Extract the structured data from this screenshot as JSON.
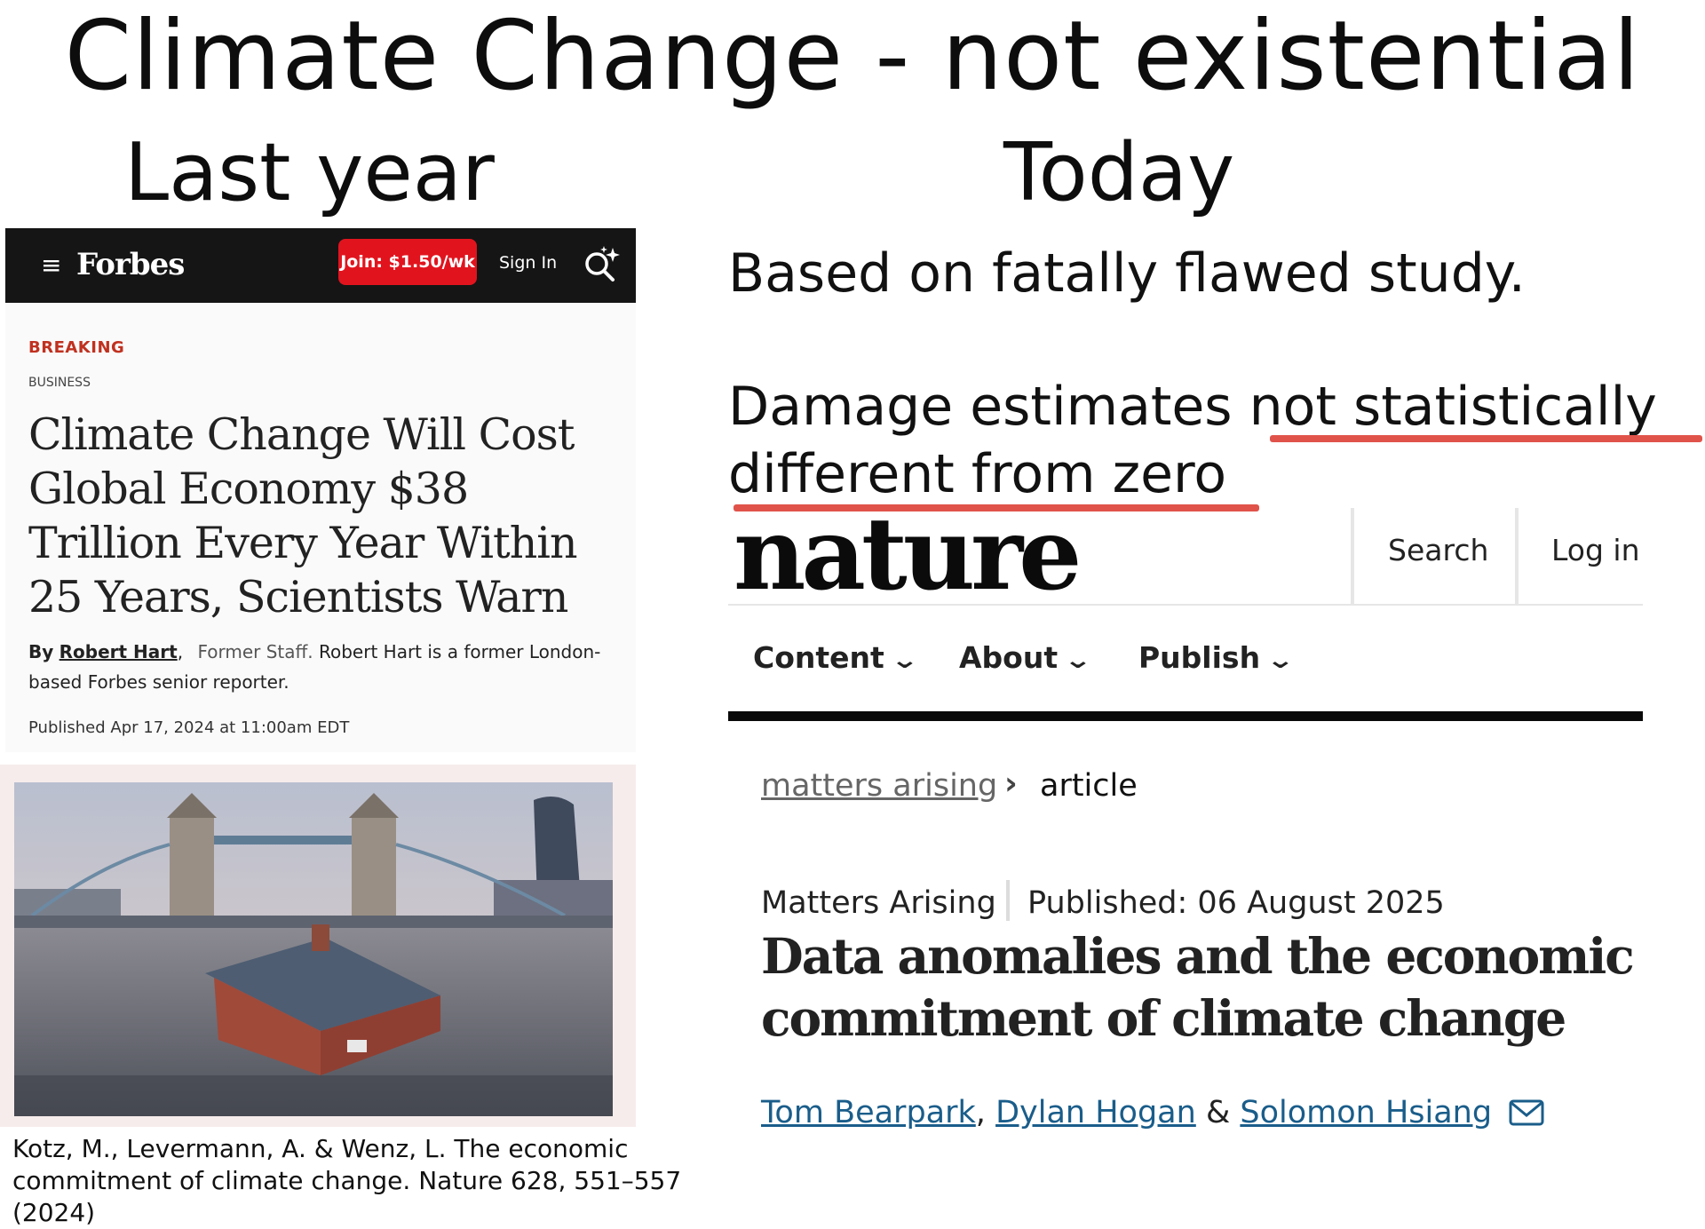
{
  "header": {
    "title": "Climate Change - not existential",
    "left_label": "Last year",
    "right_label": "Today"
  },
  "forbes": {
    "logo": "Forbes",
    "join_button": "Join: $1.50/wk",
    "sign_in": "Sign In",
    "breaking": "BREAKING",
    "section": "BUSINESS",
    "headline": "Climate Change Will Cost Global Economy $38 Trillion Every Year Within 25 Years, Scientists Warn",
    "byline_by": "By",
    "author": "Robert Hart",
    "author_role": "Former Staff.",
    "author_bio": "Robert Hart is a former London-based Forbes senior reporter.",
    "published": "Published Apr 17, 2024 at 11:00am EDT",
    "icons": {
      "menu": "menu-icon",
      "search": "search-icon"
    },
    "colors": {
      "nav_bg": "#151515",
      "join_bg": "#e1141e",
      "breaking": "#c0311f"
    }
  },
  "citation": "Kotz, M., Levermann, A. & Wenz, L. The economic commitment of climate change. Nature 628, 551–557 (2024)",
  "annotations": {
    "claim_1": "Based on fatally flawed study.",
    "claim_2_prefix": "Damage estimates ",
    "claim_2_highlight": "not statistically different from zero",
    "underline_color": "#e0534a"
  },
  "nature": {
    "logo": "nature",
    "search": "Search",
    "login": "Log in",
    "nav": [
      "Content",
      "About",
      "Publish"
    ],
    "breadcrumb": [
      "matters arising",
      "article"
    ],
    "article_type": "Matters Arising",
    "published": "Published: 06 August 2025",
    "title": "Data anomalies and the economic commitment of climate change",
    "authors": [
      "Tom Bearpark",
      "Dylan Hogan",
      "Solomon Hsiang"
    ],
    "author_sep_1": ",",
    "author_sep_2": "&",
    "link_color": "#1a5d8a",
    "icons": {
      "chevron": "chevron-down-icon",
      "mail": "mail-icon",
      "breadcrumb_sep": "chevron-right-icon"
    }
  }
}
